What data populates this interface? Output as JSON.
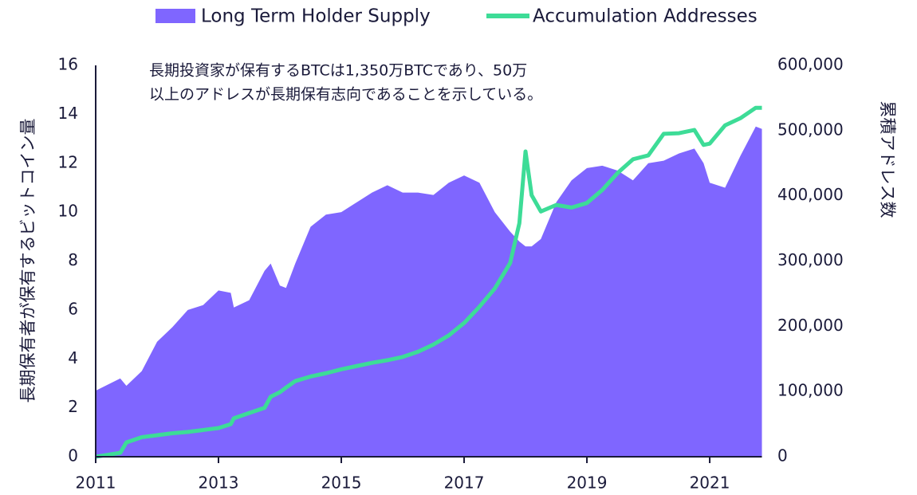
{
  "chart_data": {
    "type": "combo",
    "annotations": [
      "長期投資家が保有するBTCは1,350万BTCであり、50万",
      "以上のアドレスが長期保有志向であることを示している。"
    ],
    "y_label": "長期保有者が保有するビットコイン量",
    "y2_label": "累積アドレス数",
    "x": [
      2011.0,
      2011.4,
      2011.5,
      2011.75,
      2012.0,
      2012.25,
      2012.5,
      2012.75,
      2013.0,
      2013.2,
      2013.25,
      2013.5,
      2013.75,
      2013.85,
      2014.0,
      2014.1,
      2014.25,
      2014.5,
      2014.75,
      2015.0,
      2015.25,
      2015.5,
      2015.75,
      2016.0,
      2016.25,
      2016.5,
      2016.75,
      2017.0,
      2017.25,
      2017.5,
      2017.75,
      2017.9,
      2018.0,
      2018.1,
      2018.25,
      2018.5,
      2018.75,
      2019.0,
      2019.25,
      2019.5,
      2019.75,
      2020.0,
      2020.25,
      2020.5,
      2020.75,
      2020.9,
      2021.0,
      2021.25,
      2021.5,
      2021.75,
      2021.85
    ],
    "series": [
      {
        "name": "Long Term Holder Supply",
        "color": "#7f66ff",
        "kind": "area",
        "values": [
          2.7,
          3.2,
          2.9,
          3.5,
          4.7,
          5.3,
          6.0,
          6.2,
          6.8,
          6.7,
          6.1,
          6.4,
          7.6,
          7.9,
          7.0,
          6.9,
          7.9,
          9.4,
          9.9,
          10.0,
          10.4,
          10.8,
          11.1,
          10.8,
          10.8,
          10.7,
          11.2,
          11.5,
          11.2,
          10.0,
          9.2,
          8.8,
          8.6,
          8.6,
          8.9,
          10.4,
          11.3,
          11.8,
          11.9,
          11.7,
          11.3,
          12.0,
          12.1,
          12.4,
          12.6,
          12.0,
          11.2,
          11.0,
          12.3,
          13.5,
          13.4
        ]
      },
      {
        "name": "Accumulation Addresses",
        "color": "#3ddc97",
        "kind": "line",
        "axis": "y2",
        "values": [
          0,
          6000,
          22000,
          30000,
          33000,
          36000,
          38000,
          41000,
          44000,
          50000,
          59000,
          67000,
          75000,
          92000,
          99000,
          106000,
          116000,
          123000,
          128000,
          134000,
          139000,
          144000,
          148000,
          153000,
          161000,
          172000,
          186000,
          205000,
          230000,
          258000,
          297000,
          358000,
          468000,
          401000,
          376000,
          386000,
          382000,
          389000,
          409000,
          435000,
          456000,
          462000,
          495000,
          496000,
          501000,
          478000,
          480000,
          508000,
          519000,
          535000,
          535000
        ]
      }
    ],
    "xlim": [
      2011,
      2021.85
    ],
    "xticks": [
      2011,
      2013,
      2015,
      2017,
      2019,
      2021
    ],
    "ylim": [
      0,
      16
    ],
    "yticks": [
      0,
      2,
      4,
      6,
      8,
      10,
      12,
      14,
      16
    ],
    "y2lim": [
      0,
      600000
    ],
    "y2ticks": [
      {
        "value": 0,
        "label": "0"
      },
      {
        "value": 100000,
        "label": "100,000"
      },
      {
        "value": 200000,
        "label": "200,000"
      },
      {
        "value": 300000,
        "label": "300,000"
      },
      {
        "value": 400000,
        "label": "400,000"
      },
      {
        "value": 500000,
        "label": "500,000"
      },
      {
        "value": 600000,
        "label": "600,000"
      }
    ]
  }
}
